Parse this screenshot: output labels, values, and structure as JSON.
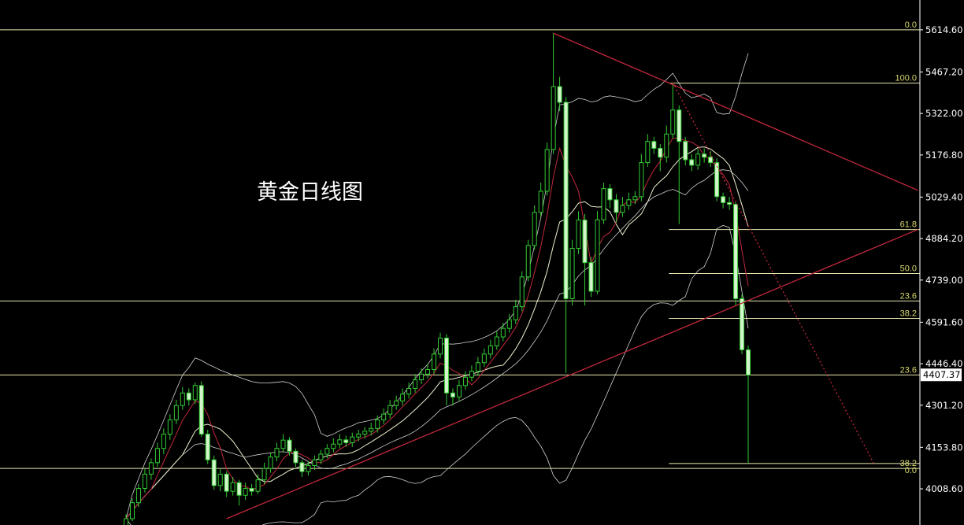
{
  "chart_data": {
    "type": "candlestick",
    "title": "黄金日线图",
    "y_ticks": [
      "5614.60",
      "5467.20",
      "5322.00",
      "5176.80",
      "5029.40",
      "4884.20",
      "4739.00",
      "4591.60",
      "4446.40",
      "4301.20",
      "4153.80",
      "4008.60"
    ],
    "ylim": [
      3882,
      5719
    ],
    "current_price": "4407.37",
    "grid": false,
    "colors": {
      "background": "#000000",
      "up": "#33cc33",
      "down_fill": "#d4f5cc",
      "trendline": "#c0283c",
      "level": "#e8e8b0",
      "fib_label": "#d8d870",
      "axis_text": "#ffffff",
      "ma_fast": "#c0283c",
      "ma_mid": "#f0f0d0",
      "band": "#d0d0d0"
    },
    "ohlc": [
      [
        3880,
        3920,
        3870,
        3904
      ],
      [
        3904,
        3975,
        3895,
        3960
      ],
      [
        3960,
        4025,
        3945,
        4010
      ],
      [
        4010,
        4080,
        3995,
        4060
      ],
      [
        4060,
        4115,
        4040,
        4100
      ],
      [
        4100,
        4170,
        4085,
        4150
      ],
      [
        4150,
        4220,
        4130,
        4200
      ],
      [
        4200,
        4270,
        4180,
        4250
      ],
      [
        4250,
        4320,
        4235,
        4300
      ],
      [
        4300,
        4365,
        4285,
        4344
      ],
      [
        4344,
        4360,
        4300,
        4320
      ],
      [
        4320,
        4380,
        4305,
        4370
      ],
      [
        4370,
        4385,
        4190,
        4200
      ],
      [
        4200,
        4215,
        4095,
        4110
      ],
      [
        4110,
        4125,
        4005,
        4020
      ],
      [
        4020,
        4080,
        4000,
        4060
      ],
      [
        4060,
        4070,
        3980,
        4000
      ],
      [
        4000,
        4050,
        3985,
        4030
      ],
      [
        4030,
        4040,
        3950,
        3986
      ],
      [
        3986,
        4030,
        3970,
        4010
      ],
      [
        4010,
        4025,
        3985,
        4000
      ],
      [
        4000,
        4060,
        3990,
        4040
      ],
      [
        4040,
        4100,
        4025,
        4080
      ],
      [
        4080,
        4135,
        4065,
        4120
      ],
      [
        4120,
        4170,
        4105,
        4150
      ],
      [
        4150,
        4200,
        4135,
        4179
      ],
      [
        4179,
        4190,
        4125,
        4140
      ],
      [
        4140,
        4150,
        4085,
        4100
      ],
      [
        4100,
        4110,
        4050,
        4069
      ],
      [
        4069,
        4105,
        4055,
        4090
      ],
      [
        4090,
        4125,
        4075,
        4110
      ],
      [
        4110,
        4145,
        4095,
        4130
      ],
      [
        4130,
        4165,
        4115,
        4150
      ],
      [
        4150,
        4185,
        4135,
        4165
      ],
      [
        4165,
        4200,
        4150,
        4180
      ],
      [
        4180,
        4195,
        4155,
        4170
      ],
      [
        4170,
        4205,
        4155,
        4190
      ],
      [
        4190,
        4215,
        4175,
        4200
      ],
      [
        4200,
        4225,
        4185,
        4210
      ],
      [
        4210,
        4240,
        4195,
        4220
      ],
      [
        4220,
        4265,
        4205,
        4250
      ],
      [
        4250,
        4290,
        4235,
        4270
      ],
      [
        4270,
        4320,
        4255,
        4300
      ],
      [
        4300,
        4335,
        4285,
        4316
      ],
      [
        4316,
        4360,
        4300,
        4340
      ],
      [
        4340,
        4380,
        4325,
        4360
      ],
      [
        4360,
        4410,
        4345,
        4390
      ],
      [
        4390,
        4430,
        4375,
        4410
      ],
      [
        4410,
        4445,
        4395,
        4426
      ],
      [
        4426,
        4500,
        4410,
        4480
      ],
      [
        4480,
        4555,
        4465,
        4536
      ],
      [
        4536,
        4550,
        4300,
        4344
      ],
      [
        4344,
        4360,
        4300,
        4330
      ],
      [
        4330,
        4390,
        4315,
        4370
      ],
      [
        4370,
        4420,
        4355,
        4399
      ],
      [
        4399,
        4440,
        4385,
        4420
      ],
      [
        4420,
        4470,
        4405,
        4450
      ],
      [
        4450,
        4500,
        4435,
        4480
      ],
      [
        4480,
        4530,
        4465,
        4509
      ],
      [
        4509,
        4560,
        4495,
        4540
      ],
      [
        4540,
        4590,
        4525,
        4570
      ],
      [
        4570,
        4620,
        4555,
        4600
      ],
      [
        4600,
        4670,
        4585,
        4646
      ],
      [
        4646,
        4770,
        4630,
        4750
      ],
      [
        4750,
        4880,
        4735,
        4860
      ],
      [
        4860,
        5000,
        4845,
        4976
      ],
      [
        4976,
        5080,
        4960,
        5050
      ],
      [
        5050,
        5220,
        5035,
        5196
      ],
      [
        5196,
        5603,
        5180,
        5416
      ],
      [
        5416,
        5450,
        5330,
        5361
      ],
      [
        5361,
        5380,
        4414,
        4674
      ],
      [
        4674,
        4880,
        4650,
        4850
      ],
      [
        4850,
        4980,
        4830,
        4949
      ],
      [
        4949,
        4970,
        4650,
        4800
      ],
      [
        4800,
        4820,
        4680,
        4700
      ],
      [
        4700,
        4980,
        4690,
        4950
      ],
      [
        4950,
        5080,
        4935,
        5059
      ],
      [
        5059,
        5075,
        4990,
        5020
      ],
      [
        5020,
        5040,
        4940,
        4976
      ],
      [
        4976,
        5030,
        4960,
        5000
      ],
      [
        5000,
        5045,
        4985,
        5020
      ],
      [
        5020,
        5050,
        5005,
        5031
      ],
      [
        5031,
        5180,
        5015,
        5150
      ],
      [
        5150,
        5250,
        5135,
        5224
      ],
      [
        5224,
        5240,
        5180,
        5200
      ],
      [
        5200,
        5215,
        5120,
        5169
      ],
      [
        5169,
        5280,
        5150,
        5250
      ],
      [
        5250,
        5430,
        5235,
        5334
      ],
      [
        5334,
        5350,
        4935,
        5224
      ],
      [
        5224,
        5240,
        5140,
        5160
      ],
      [
        5160,
        5180,
        5120,
        5141
      ],
      [
        5141,
        5200,
        5125,
        5180
      ],
      [
        5180,
        5200,
        5150,
        5169
      ],
      [
        5169,
        5190,
        5135,
        5150
      ],
      [
        5150,
        5165,
        5015,
        5031
      ],
      [
        5031,
        5045,
        4990,
        5010
      ],
      [
        5010,
        5030,
        4985,
        5004
      ],
      [
        5004,
        5015,
        4650,
        4674
      ],
      [
        4674,
        4690,
        4480,
        4495
      ],
      [
        4495,
        4510,
        4097,
        4407
      ]
    ],
    "trendlines": [
      {
        "from": [
          68,
          5603
        ],
        "to": [
          126,
          5053
        ],
        "style": "solid"
      },
      {
        "from": [
          16,
          3904
        ],
        "to": [
          126,
          4916
        ],
        "style": "solid"
      },
      {
        "from": [
          87,
          5430
        ],
        "to": [
          119,
          4097
        ],
        "style": "dotted"
      }
    ],
    "fib_levels_full": [
      {
        "label": "0.0",
        "price": 5614.6
      },
      {
        "label": "23.6",
        "price": 4666
      },
      {
        "label": "23.6",
        "price": 4407
      },
      {
        "label": "38.2",
        "price": 4080
      }
    ],
    "fib_levels_recent": [
      {
        "label": "100.0",
        "price": 5428
      },
      {
        "label": "61.8",
        "price": 4916
      },
      {
        "label": "50.0",
        "price": 4762
      },
      {
        "label": "38.2",
        "price": 4605
      },
      {
        "label": "0.0",
        "price": 4097
      }
    ],
    "fib_recent_start_candle": 87,
    "indicators": [
      "MA5",
      "MA10",
      "Bollinger(20,2)"
    ]
  }
}
